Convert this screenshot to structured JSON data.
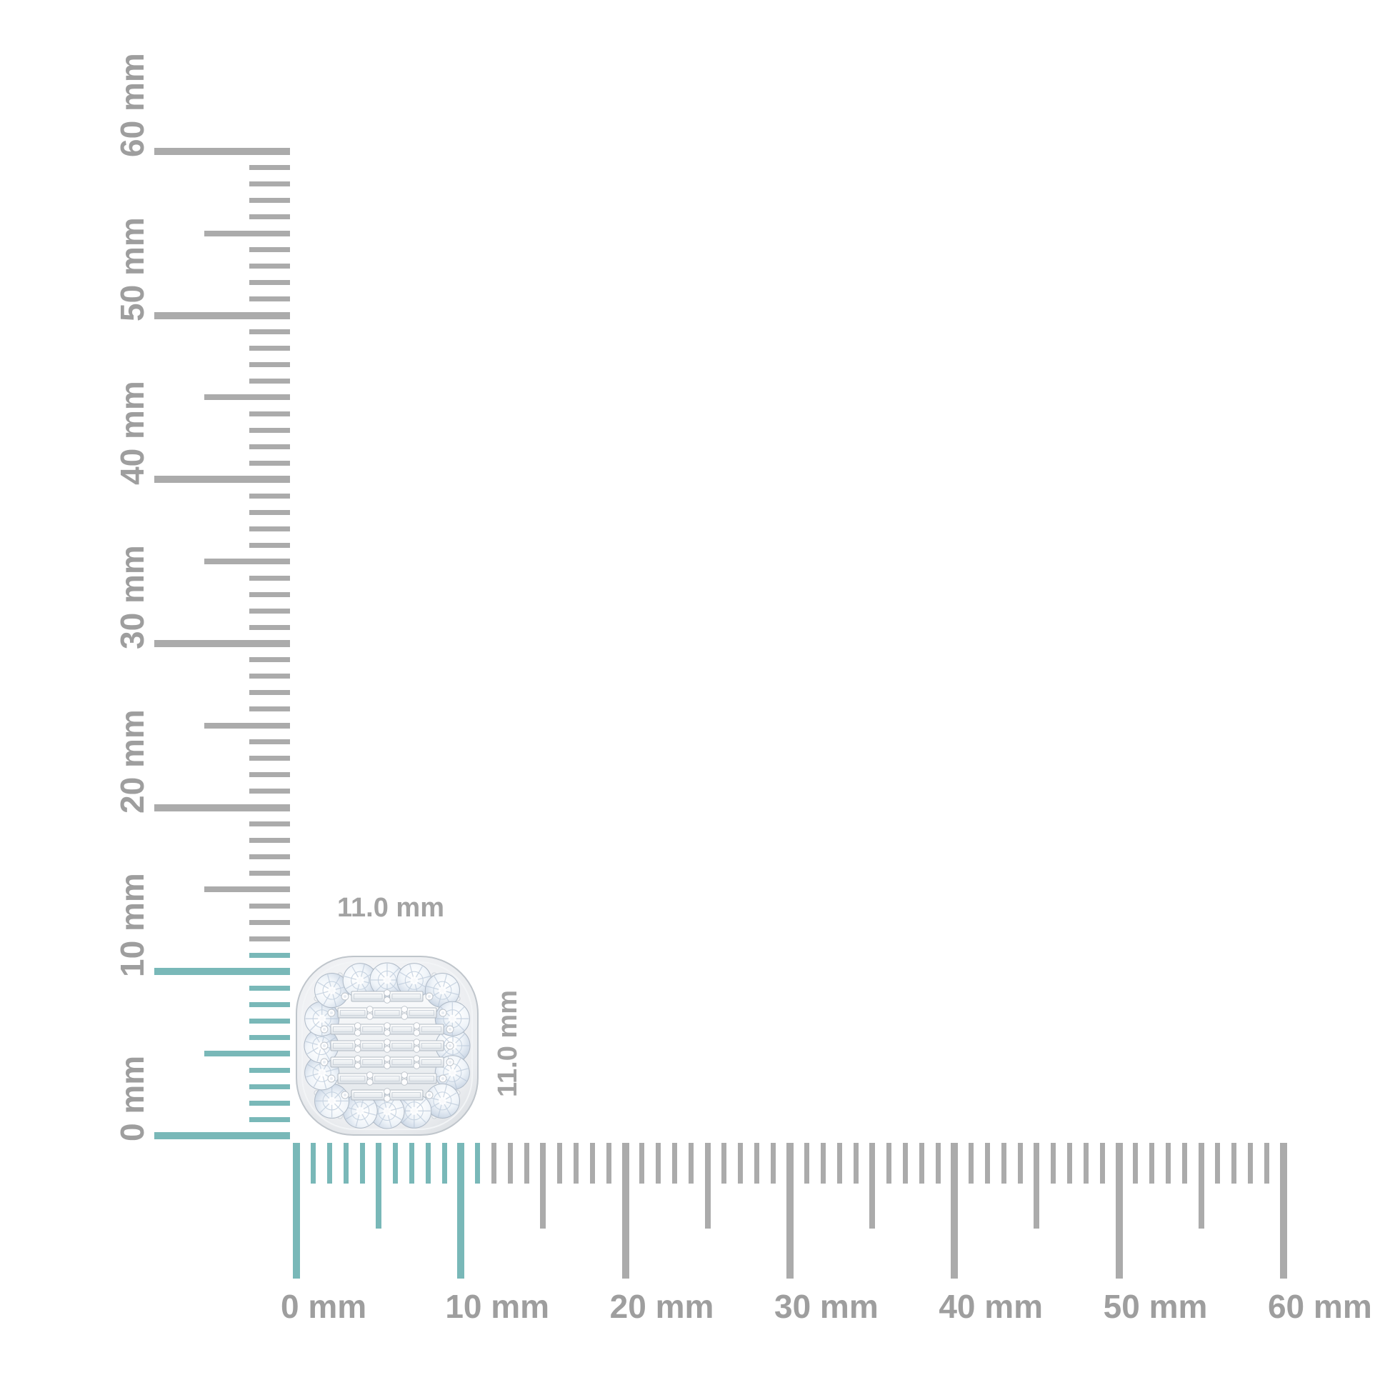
{
  "background_color": "#ffffff",
  "colors": {
    "tick_gray": "#ababab",
    "tick_highlight_teal": "#79b8b8",
    "ruler_label_gray": "#9e9e9e",
    "dimension_label_gray": "#a3a3a3"
  },
  "vertical_ruler": {
    "unit": "mm",
    "min_mm": 0,
    "max_mm": 60,
    "minor_step_mm": 1,
    "medium_step_mm": 5,
    "major_step_mm": 10,
    "highlight_from_mm": 0,
    "highlight_to_mm": 11,
    "labels": [
      "0 mm",
      "10 mm",
      "20 mm",
      "30 mm",
      "40 mm",
      "50 mm",
      "60 mm"
    ]
  },
  "horizontal_ruler": {
    "unit": "mm",
    "min_mm": 0,
    "max_mm": 60,
    "minor_step_mm": 1,
    "medium_step_mm": 5,
    "major_step_mm": 10,
    "highlight_from_mm": 0,
    "highlight_to_mm": 11,
    "labels": [
      "0 mm",
      "10 mm",
      "20 mm",
      "30 mm",
      "40 mm",
      "50 mm",
      "60 mm"
    ]
  },
  "dimension_labels": {
    "width": "11.0 mm",
    "height": "11.0 mm"
  },
  "item": {
    "kind": "diamond-cluster-cushion-halo-stud",
    "width_mm": 11.0,
    "height_mm": 11.0,
    "halo_stone_count": 16,
    "center_pattern": "baguette-and-round-grid",
    "metal_color": "#e4e8ec",
    "stone_color": "#dce6f0"
  }
}
